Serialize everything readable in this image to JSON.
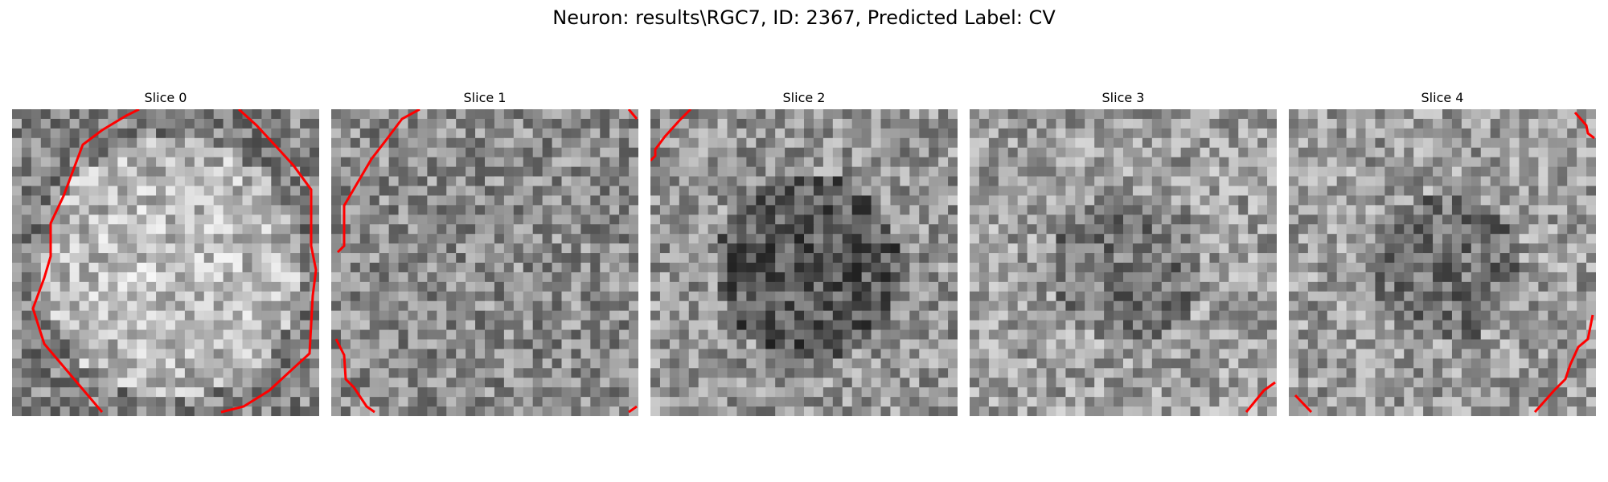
{
  "figure": {
    "title": "Neuron: results\\RGC7, ID: 2367, Predicted Label: CV"
  },
  "panels": [
    {
      "label": "Slice 0",
      "seed": 11,
      "base": 0.58,
      "blob": "bright-center",
      "contour_color": "#ff0000"
    },
    {
      "label": "Slice 1",
      "seed": 23,
      "base": 0.55,
      "blob": "medium",
      "contour_color": "#ff0000"
    },
    {
      "label": "Slice 2",
      "seed": 37,
      "base": 0.5,
      "blob": "dark-center",
      "contour_color": "#ff0000"
    },
    {
      "label": "Slice 3",
      "seed": 49,
      "base": 0.56,
      "blob": "dark-center-light",
      "contour_color": "#ff0000"
    },
    {
      "label": "Slice 4",
      "seed": 61,
      "base": 0.55,
      "blob": "dark-center-light",
      "contour_color": "#ff0000"
    }
  ],
  "grid_size": 32
}
